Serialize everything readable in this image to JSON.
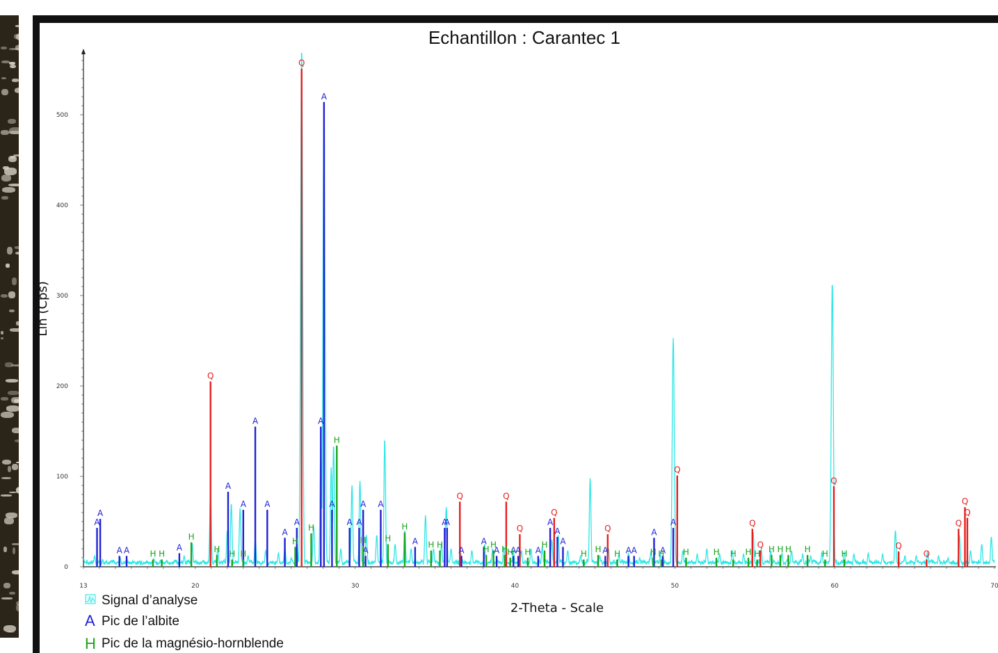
{
  "chart_data": {
    "type": "line",
    "title": "Echantillon : Carantec 1",
    "xlabel": "2-Theta - Scale",
    "ylabel": "Lin (Cps)",
    "xlim": [
      13,
      70
    ],
    "ylim": [
      0,
      570
    ],
    "x_ticks": [
      13,
      20,
      30,
      40,
      50,
      60,
      70
    ],
    "y_ticks": [
      0,
      100,
      200,
      300,
      400,
      500
    ],
    "grid": false,
    "legend_position": "bottom-left",
    "colors": {
      "signal": "#2ee6e6",
      "quartz": "#e61e1e",
      "albite": "#1f1fd6",
      "hornblende": "#1aa31a"
    },
    "legend": [
      {
        "marker": "signal-icon",
        "label": "Signal d’analyse"
      },
      {
        "marker": "A",
        "label": "Pic de l’albite"
      },
      {
        "marker": "H",
        "label": "Pic de la magnésio-hornblende"
      }
    ],
    "signal": {
      "name": "Signal d’analyse",
      "peaks": [
        [
          13.0,
          10
        ],
        [
          13.7,
          12
        ],
        [
          14.2,
          8
        ],
        [
          15.3,
          10
        ],
        [
          16.2,
          6
        ],
        [
          17.4,
          9
        ],
        [
          18.2,
          7
        ],
        [
          19.3,
          12
        ],
        [
          19.8,
          26
        ],
        [
          20.95,
          82
        ],
        [
          21.4,
          20
        ],
        [
          22.0,
          40
        ],
        [
          22.25,
          70
        ],
        [
          22.8,
          65
        ],
        [
          23.3,
          12
        ],
        [
          23.75,
          30
        ],
        [
          24.4,
          18
        ],
        [
          25.2,
          15
        ],
        [
          25.6,
          22
        ],
        [
          26.0,
          10
        ],
        [
          26.35,
          25
        ],
        [
          26.65,
          575
        ],
        [
          27.4,
          45
        ],
        [
          27.85,
          140
        ],
        [
          28.05,
          520
        ],
        [
          28.5,
          110
        ],
        [
          28.65,
          135
        ],
        [
          29.1,
          20
        ],
        [
          29.8,
          90
        ],
        [
          30.3,
          95
        ],
        [
          30.7,
          35
        ],
        [
          31.35,
          35
        ],
        [
          31.85,
          142
        ],
        [
          32.5,
          25
        ],
        [
          33.1,
          40
        ],
        [
          33.5,
          20
        ],
        [
          34.4,
          57
        ],
        [
          34.9,
          20
        ],
        [
          35.4,
          25
        ],
        [
          35.7,
          66
        ],
        [
          36.0,
          20
        ],
        [
          36.6,
          15
        ],
        [
          37.3,
          18
        ],
        [
          38.1,
          25
        ],
        [
          38.6,
          20
        ],
        [
          39.3,
          22
        ],
        [
          39.9,
          18
        ],
        [
          40.4,
          18
        ],
        [
          41.0,
          20
        ],
        [
          41.7,
          22
        ],
        [
          42.3,
          30
        ],
        [
          42.7,
          35
        ],
        [
          43.3,
          18
        ],
        [
          44.1,
          12
        ],
        [
          44.7,
          98
        ],
        [
          45.3,
          12
        ],
        [
          45.85,
          20
        ],
        [
          46.5,
          14
        ],
        [
          47.1,
          15
        ],
        [
          47.8,
          10
        ],
        [
          48.5,
          16
        ],
        [
          49.1,
          14
        ],
        [
          49.9,
          253
        ],
        [
          50.5,
          18
        ],
        [
          51.4,
          14
        ],
        [
          52.0,
          20
        ],
        [
          52.8,
          14
        ],
        [
          53.6,
          18
        ],
        [
          54.3,
          14
        ],
        [
          54.9,
          38
        ],
        [
          55.4,
          20
        ],
        [
          56.0,
          18
        ],
        [
          56.7,
          15
        ],
        [
          57.3,
          18
        ],
        [
          58.0,
          14
        ],
        [
          58.5,
          12
        ],
        [
          59.2,
          16
        ],
        [
          59.85,
          315
        ],
        [
          60.6,
          16
        ],
        [
          61.2,
          14
        ],
        [
          62.1,
          15
        ],
        [
          63.0,
          14
        ],
        [
          63.8,
          40
        ],
        [
          64.4,
          12
        ],
        [
          65.1,
          12
        ],
        [
          65.8,
          16
        ],
        [
          66.5,
          12
        ],
        [
          67.1,
          10
        ],
        [
          67.8,
          35
        ],
        [
          68.5,
          18
        ],
        [
          69.2,
          25
        ],
        [
          69.8,
          33
        ]
      ]
    },
    "series": [
      {
        "name": "Q",
        "label": "Q",
        "x": [
          20.95,
          26.65,
          36.55,
          39.45,
          40.3,
          42.45,
          45.8,
          50.15,
          54.85,
          55.35,
          59.95,
          64.0,
          65.75,
          67.75,
          68.15,
          68.3
        ],
        "values": [
          205,
          551,
          72,
          72,
          36,
          54,
          36,
          101,
          42,
          18,
          89,
          17,
          8,
          42,
          66,
          54
        ]
      },
      {
        "name": "A",
        "label": "A",
        "x": [
          13.85,
          14.05,
          15.25,
          15.7,
          19.0,
          22.05,
          23.0,
          23.75,
          24.5,
          25.6,
          26.35,
          27.85,
          28.05,
          28.55,
          29.65,
          30.25,
          30.5,
          30.65,
          31.6,
          33.75,
          35.6,
          35.75,
          36.65,
          38.05,
          38.85,
          39.9,
          40.2,
          41.45,
          42.2,
          42.65,
          43.0,
          45.65,
          47.1,
          47.45,
          48.7,
          49.25,
          49.9
        ],
        "values": [
          43,
          53,
          12,
          12,
          15,
          83,
          63,
          155,
          63,
          32,
          43,
          155,
          514,
          63,
          43,
          43,
          63,
          12,
          63,
          22,
          43,
          43,
          12,
          22,
          12,
          12,
          12,
          12,
          43,
          33,
          22,
          12,
          12,
          12,
          32,
          12,
          43
        ]
      },
      {
        "name": "H",
        "label": "H",
        "x": [
          17.35,
          17.9,
          19.75,
          21.35,
          22.3,
          23.0,
          26.25,
          27.25,
          28.85,
          30.5,
          32.05,
          33.1,
          34.75,
          35.3,
          38.2,
          38.65,
          39.35,
          39.7,
          40.8,
          41.85,
          44.3,
          45.2,
          46.4,
          48.65,
          49.15,
          50.7,
          52.6,
          53.65,
          54.6,
          55.15,
          56.05,
          56.6,
          57.1,
          58.3,
          59.4,
          60.6
        ],
        "values": [
          8,
          8,
          27,
          13,
          8,
          8,
          22,
          37,
          134,
          23,
          25,
          38,
          18,
          18,
          13,
          18,
          13,
          10,
          10,
          18,
          8,
          13,
          8,
          10,
          8,
          10,
          10,
          8,
          10,
          8,
          13,
          13,
          13,
          13,
          8,
          8
        ]
      }
    ]
  }
}
